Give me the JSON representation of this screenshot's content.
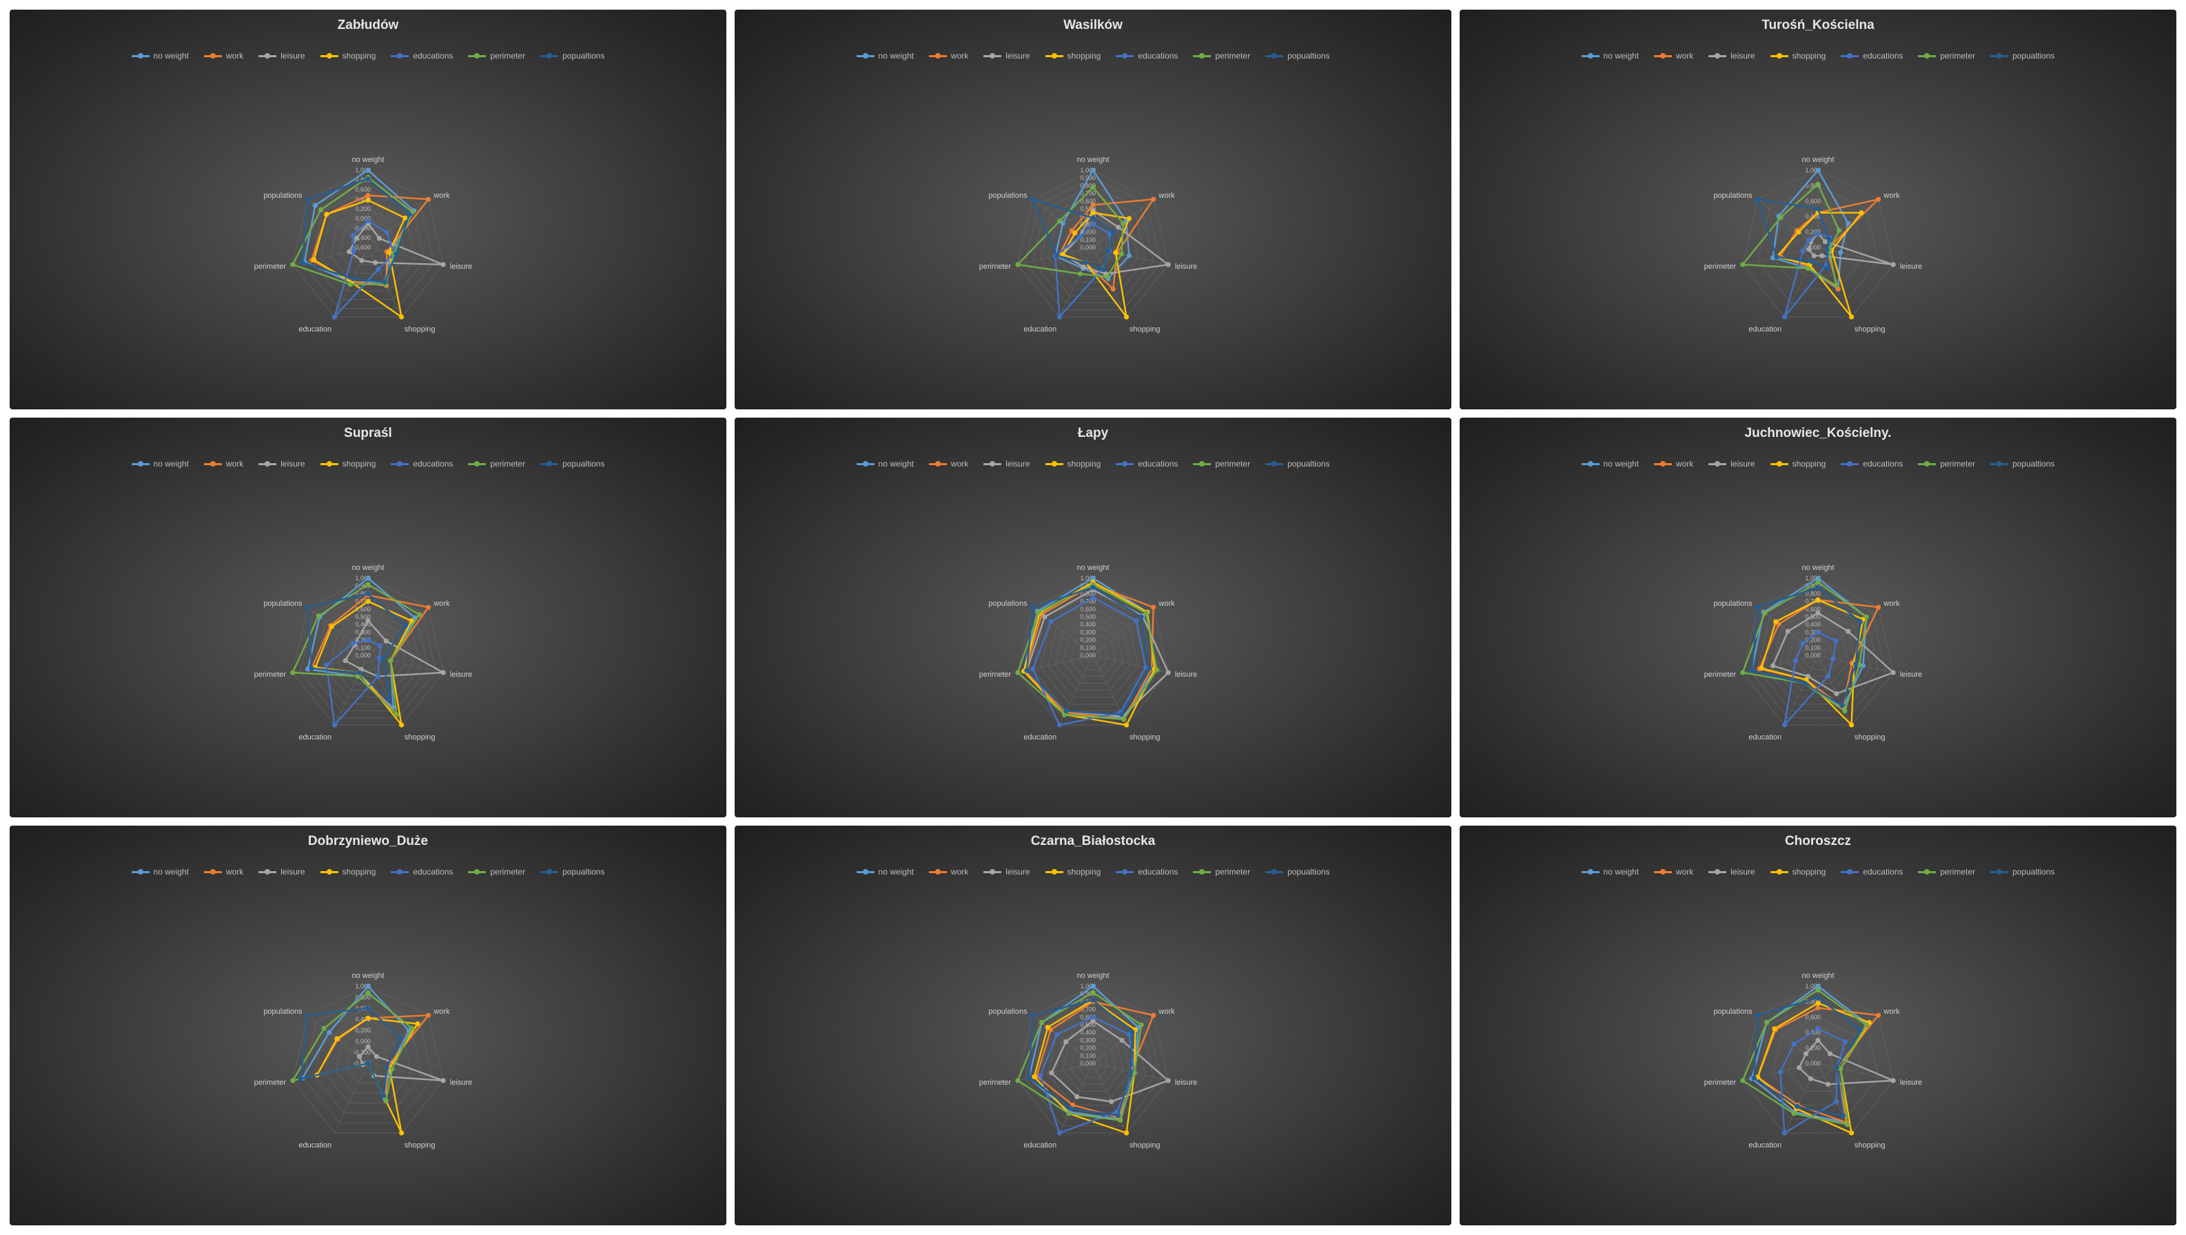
{
  "series_names": [
    "no weight",
    "work",
    "leisure",
    "shopping",
    "educations",
    "perimeter",
    "popualtions"
  ],
  "series_colors": [
    "#5b9bd5",
    "#ed7d31",
    "#a5a5a5",
    "#ffc000",
    "#4472c4",
    "#70ad47",
    "#255e91"
  ],
  "chart_data": [
    {
      "type": "radar",
      "title": "Zabłudów",
      "axes": [
        "no weight",
        "work",
        "leisure",
        "shopping",
        "education",
        "perimeter",
        "populations"
      ],
      "tick_labels": [
        "-0,600",
        "-0,400",
        "-0,200",
        "0,000",
        "0,200",
        "0,400",
        "0,600",
        "0,800",
        "1,000"
      ],
      "rmin": -0.6,
      "rmax": 1.0,
      "series": [
        {
          "name": "no weight",
          "values": [
            1.0,
            0.62,
            -0.12,
            0.2,
            0.2,
            0.75,
            0.8
          ]
        },
        {
          "name": "work",
          "values": [
            0.48,
            1.0,
            -0.2,
            0.28,
            0.18,
            0.6,
            0.5
          ]
        },
        {
          "name": "leisure",
          "values": [
            -0.1,
            -0.3,
            1.0,
            -0.25,
            -0.3,
            -0.2,
            -0.3
          ]
        },
        {
          "name": "shopping",
          "values": [
            0.38,
            0.38,
            -0.15,
            1.0,
            0.2,
            0.55,
            0.5
          ]
        },
        {
          "name": "educations",
          "values": [
            -0.05,
            -0.1,
            -0.05,
            -0.1,
            1.0,
            -0.3,
            -0.2
          ]
        },
        {
          "name": "perimeter",
          "values": [
            0.85,
            0.58,
            -0.05,
            0.25,
            0.25,
            1.0,
            0.65
          ]
        },
        {
          "name": "popualtions",
          "values": [
            0.82,
            0.5,
            0.0,
            0.2,
            0.12,
            0.8,
            1.0
          ]
        }
      ]
    },
    {
      "type": "radar",
      "title": "Wasilków",
      "axes": [
        "no weight",
        "work",
        "leisure",
        "shopping",
        "education",
        "perimeter",
        "populations"
      ],
      "tick_labels": [
        "0,000",
        "0,100",
        "0,200",
        "0,300",
        "0,400",
        "0,500",
        "0,600",
        "0,700",
        "0,800",
        "0,900",
        "1,000"
      ],
      "rmin": 0.0,
      "rmax": 1.0,
      "series": [
        {
          "name": "no weight",
          "values": [
            1.0,
            0.55,
            0.48,
            0.45,
            0.3,
            0.5,
            0.5
          ]
        },
        {
          "name": "work",
          "values": [
            0.55,
            1.0,
            0.32,
            0.6,
            0.22,
            0.45,
            0.35
          ]
        },
        {
          "name": "leisure",
          "values": [
            0.48,
            0.42,
            1.0,
            0.38,
            0.28,
            0.4,
            0.22
          ]
        },
        {
          "name": "shopping",
          "values": [
            0.45,
            0.6,
            0.3,
            1.0,
            0.22,
            0.4,
            0.3
          ]
        },
        {
          "name": "educations",
          "values": [
            0.3,
            0.28,
            0.22,
            0.3,
            1.0,
            0.5,
            0.22
          ]
        },
        {
          "name": "perimeter",
          "values": [
            0.78,
            0.5,
            0.38,
            0.42,
            0.38,
            1.0,
            0.55
          ]
        },
        {
          "name": "popualtions",
          "values": [
            0.38,
            0.33,
            0.2,
            0.32,
            0.22,
            0.48,
            1.0
          ]
        }
      ]
    },
    {
      "type": "radar",
      "title": "Turośń_Kościelna",
      "axes": [
        "no weight",
        "work",
        "leisure",
        "shopping",
        "education",
        "perimeter",
        "populations"
      ],
      "tick_labels": [
        "0,000",
        "0,200",
        "0,400",
        "0,600",
        "0,800",
        "1,000"
      ],
      "rmin": 0.0,
      "rmax": 1.0,
      "series": [
        {
          "name": "no weight",
          "values": [
            1.0,
            0.5,
            0.3,
            0.6,
            0.3,
            0.6,
            0.65
          ]
        },
        {
          "name": "work",
          "values": [
            0.45,
            1.0,
            0.12,
            0.6,
            0.28,
            0.5,
            0.35
          ]
        },
        {
          "name": "leisure",
          "values": [
            0.18,
            0.12,
            1.0,
            0.12,
            0.12,
            0.12,
            0.12
          ]
        },
        {
          "name": "shopping",
          "values": [
            0.45,
            0.72,
            0.18,
            1.0,
            0.25,
            0.55,
            0.32
          ]
        },
        {
          "name": "educations",
          "values": [
            0.18,
            0.2,
            0.15,
            0.25,
            1.0,
            0.2,
            0.15
          ]
        },
        {
          "name": "perimeter",
          "values": [
            0.82,
            0.35,
            0.15,
            0.55,
            0.3,
            1.0,
            0.62
          ]
        },
        {
          "name": "popualtions",
          "values": [
            0.5,
            0.18,
            0.12,
            0.3,
            0.2,
            0.55,
            1.0
          ]
        }
      ]
    },
    {
      "type": "radar",
      "title": "Supraśl",
      "axes": [
        "no weight",
        "work",
        "leisure",
        "shopping",
        "education",
        "perimeter",
        "populations"
      ],
      "tick_labels": [
        "0,000",
        "0,100",
        "0,200",
        "0,300",
        "0,400",
        "0,500",
        "0,600",
        "0,700",
        "0,800",
        "0,900",
        "1,000"
      ],
      "rmin": 0.0,
      "rmax": 1.0,
      "series": [
        {
          "name": "no weight",
          "values": [
            1.0,
            0.78,
            0.3,
            0.75,
            0.3,
            0.8,
            0.8
          ]
        },
        {
          "name": "work",
          "values": [
            0.78,
            1.0,
            0.3,
            0.85,
            0.25,
            0.75,
            0.62
          ]
        },
        {
          "name": "leisure",
          "values": [
            0.45,
            0.3,
            1.0,
            0.3,
            0.2,
            0.3,
            0.22
          ]
        },
        {
          "name": "shopping",
          "values": [
            0.7,
            0.72,
            0.3,
            1.0,
            0.25,
            0.7,
            0.6
          ]
        },
        {
          "name": "educations",
          "values": [
            0.2,
            0.2,
            0.15,
            0.3,
            1.0,
            0.55,
            0.25
          ]
        },
        {
          "name": "perimeter",
          "values": [
            0.92,
            0.85,
            0.3,
            0.85,
            0.3,
            1.0,
            0.82
          ]
        },
        {
          "name": "popualtions",
          "values": [
            0.8,
            0.62,
            0.2,
            0.65,
            0.25,
            0.75,
            1.0
          ]
        }
      ]
    },
    {
      "type": "radar",
      "title": "Łapy",
      "axes": [
        "no weight",
        "work",
        "leisure",
        "shopping",
        "education",
        "perimeter",
        "populations"
      ],
      "tick_labels": [
        "0,000",
        "0,100",
        "0,200",
        "0,300",
        "0,400",
        "0,500",
        "0,600",
        "0,700",
        "0,800",
        "0,900",
        "1,000"
      ],
      "rmin": 0.0,
      "rmax": 1.0,
      "series": [
        {
          "name": "no weight",
          "values": [
            1.0,
            0.9,
            0.82,
            0.9,
            0.85,
            0.92,
            0.92
          ]
        },
        {
          "name": "work",
          "values": [
            0.92,
            1.0,
            0.78,
            0.92,
            0.82,
            0.9,
            0.85
          ]
        },
        {
          "name": "leisure",
          "values": [
            0.85,
            0.82,
            1.0,
            0.88,
            0.8,
            0.88,
            0.8
          ]
        },
        {
          "name": "shopping",
          "values": [
            0.95,
            0.9,
            0.82,
            1.0,
            0.85,
            0.92,
            0.88
          ]
        },
        {
          "name": "educations",
          "values": [
            0.75,
            0.72,
            0.7,
            0.82,
            1.0,
            0.8,
            0.7
          ]
        },
        {
          "name": "perimeter",
          "values": [
            0.92,
            0.88,
            0.85,
            0.92,
            0.85,
            1.0,
            0.9
          ]
        },
        {
          "name": "popualtions",
          "values": [
            0.88,
            0.8,
            0.75,
            0.85,
            0.8,
            0.88,
            1.0
          ]
        }
      ]
    },
    {
      "type": "radar",
      "title": "Juchnowiec_Kościelny.",
      "axes": [
        "no weight",
        "work",
        "leisure",
        "shopping",
        "education",
        "perimeter",
        "populations"
      ],
      "tick_labels": [
        "0,000",
        "0,100",
        "0,200",
        "0,300",
        "0,400",
        "0,500",
        "0,600",
        "0,700",
        "0,800",
        "0,900",
        "1,000"
      ],
      "rmin": 0.0,
      "rmax": 1.0,
      "series": [
        {
          "name": "no weight",
          "values": [
            1.0,
            0.8,
            0.6,
            0.75,
            0.4,
            0.88,
            0.9
          ]
        },
        {
          "name": "work",
          "values": [
            0.72,
            1.0,
            0.45,
            0.75,
            0.35,
            0.78,
            0.65
          ]
        },
        {
          "name": "leisure",
          "values": [
            0.55,
            0.5,
            1.0,
            0.55,
            0.3,
            0.6,
            0.5
          ]
        },
        {
          "name": "shopping",
          "values": [
            0.72,
            0.75,
            0.48,
            1.0,
            0.35,
            0.75,
            0.7
          ]
        },
        {
          "name": "educations",
          "values": [
            0.3,
            0.3,
            0.2,
            0.3,
            1.0,
            0.3,
            0.25
          ]
        },
        {
          "name": "perimeter",
          "values": [
            0.95,
            0.8,
            0.55,
            0.8,
            0.4,
            1.0,
            0.88
          ]
        },
        {
          "name": "popualtions",
          "values": [
            0.88,
            0.7,
            0.5,
            0.72,
            0.4,
            0.88,
            1.0
          ]
        }
      ]
    },
    {
      "type": "radar",
      "title": "Dobrzyniewo_Duże",
      "axes": [
        "no weight",
        "work",
        "leisure",
        "shopping",
        "education",
        "perimeter",
        "populations"
      ],
      "tick_labels": [
        "-0,400",
        "-0,200",
        "0,000",
        "0,200",
        "0,400",
        "0,600",
        "0,800",
        "1,000"
      ],
      "rmin": -0.4,
      "rmax": 1.0,
      "series": [
        {
          "name": "no weight",
          "values": [
            1.0,
            0.55,
            0.0,
            0.3,
            -0.4,
            0.82,
            0.5
          ]
        },
        {
          "name": "work",
          "values": [
            0.42,
            1.0,
            -0.05,
            0.35,
            -0.4,
            0.55,
            0.3
          ]
        },
        {
          "name": "leisure",
          "values": [
            -0.1,
            -0.2,
            1.0,
            -0.15,
            -0.4,
            -0.3,
            -0.2
          ]
        },
        {
          "name": "shopping",
          "values": [
            0.42,
            0.75,
            0.0,
            1.0,
            -0.4,
            0.55,
            0.32
          ]
        },
        {
          "name": "educations",
          "values": [
            -0.4,
            -0.4,
            -0.4,
            -0.4,
            -0.4,
            -0.4,
            -0.4
          ]
        },
        {
          "name": "perimeter",
          "values": [
            0.88,
            0.62,
            0.05,
            0.35,
            -0.4,
            1.0,
            0.62
          ]
        },
        {
          "name": "popualtions",
          "values": [
            0.6,
            0.35,
            -0.05,
            0.25,
            -0.4,
            0.85,
            1.0
          ]
        }
      ]
    },
    {
      "type": "radar",
      "title": "Czarna_Białostocka",
      "axes": [
        "no weight",
        "work",
        "leisure",
        "shopping",
        "education",
        "perimeter",
        "populations"
      ],
      "tick_labels": [
        "0,000",
        "0,100",
        "0,200",
        "0,300",
        "0,400",
        "0,500",
        "0,600",
        "0,700",
        "0,800",
        "0,900",
        "1,000"
      ],
      "rmin": 0.0,
      "rmax": 1.0,
      "series": [
        {
          "name": "no weight",
          "values": [
            1.0,
            0.75,
            0.55,
            0.8,
            0.7,
            0.85,
            0.85
          ]
        },
        {
          "name": "work",
          "values": [
            0.8,
            1.0,
            0.5,
            0.78,
            0.6,
            0.75,
            0.7
          ]
        },
        {
          "name": "leisure",
          "values": [
            0.55,
            0.48,
            1.0,
            0.55,
            0.48,
            0.55,
            0.45
          ]
        },
        {
          "name": "shopping",
          "values": [
            0.82,
            0.7,
            0.55,
            1.0,
            0.72,
            0.78,
            0.75
          ]
        },
        {
          "name": "educations",
          "values": [
            0.6,
            0.6,
            0.55,
            0.7,
            1.0,
            0.7,
            0.6
          ]
        },
        {
          "name": "perimeter",
          "values": [
            0.92,
            0.8,
            0.55,
            0.82,
            0.72,
            1.0,
            0.85
          ]
        },
        {
          "name": "popualtions",
          "values": [
            0.82,
            0.65,
            0.5,
            0.75,
            0.65,
            0.85,
            1.0
          ]
        }
      ]
    },
    {
      "type": "radar",
      "title": "Choroszcz",
      "axes": [
        "no weight",
        "work",
        "leisure",
        "shopping",
        "education",
        "perimeter",
        "populations"
      ],
      "tick_labels": [
        "0,000",
        "0,200",
        "0,400",
        "0,600",
        "0,800",
        "1,000"
      ],
      "rmin": 0.0,
      "rmax": 1.0,
      "series": [
        {
          "name": "no weight",
          "values": [
            1.0,
            0.82,
            0.3,
            0.85,
            0.7,
            0.88,
            0.85
          ]
        },
        {
          "name": "work",
          "values": [
            0.72,
            1.0,
            0.25,
            0.85,
            0.6,
            0.8,
            0.7
          ]
        },
        {
          "name": "leisure",
          "values": [
            0.3,
            0.2,
            1.0,
            0.3,
            0.22,
            0.25,
            0.2
          ]
        },
        {
          "name": "shopping",
          "values": [
            0.78,
            0.85,
            0.3,
            1.0,
            0.65,
            0.8,
            0.72
          ]
        },
        {
          "name": "educations",
          "values": [
            0.45,
            0.45,
            0.25,
            0.55,
            1.0,
            0.5,
            0.4
          ]
        },
        {
          "name": "perimeter",
          "values": [
            0.95,
            0.8,
            0.3,
            0.88,
            0.72,
            1.0,
            0.85
          ]
        },
        {
          "name": "popualtions",
          "values": [
            0.85,
            0.7,
            0.25,
            0.75,
            0.62,
            0.85,
            1.0
          ]
        }
      ]
    }
  ]
}
